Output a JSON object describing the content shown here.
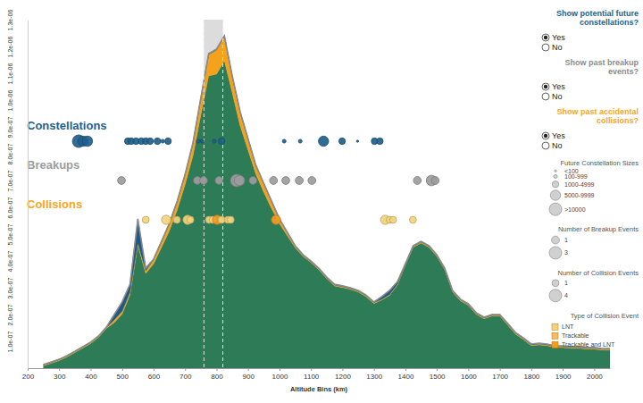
{
  "chart_data": {
    "type": "area",
    "stacked": true,
    "x_label": "Altitude Bins (km)",
    "x": [
      250,
      275,
      300,
      325,
      350,
      375,
      400,
      425,
      450,
      475,
      500,
      525,
      550,
      575,
      600,
      625,
      650,
      675,
      700,
      725,
      750,
      775,
      800,
      825,
      850,
      875,
      900,
      925,
      950,
      975,
      1000,
      1025,
      1050,
      1075,
      1100,
      1125,
      1150,
      1175,
      1200,
      1225,
      1250,
      1275,
      1300,
      1325,
      1350,
      1375,
      1400,
      1425,
      1450,
      1475,
      1500,
      1525,
      1550,
      1575,
      1600,
      1625,
      1650,
      1675,
      1700,
      1725,
      1750,
      1775,
      1800,
      1825,
      1850,
      1875,
      1900,
      1925,
      1950,
      1975,
      2000,
      2025,
      2050
    ],
    "xlim": [
      200,
      2050
    ],
    "xticks": [
      200,
      300,
      400,
      500,
      600,
      700,
      800,
      900,
      1000,
      1100,
      1200,
      1300,
      1400,
      1500,
      1600,
      1700,
      1800,
      1900,
      2000
    ],
    "ylim": [
      0,
      1.3e-06
    ],
    "yticks": [
      {
        "value": 1e-07,
        "label": "1.0e-07"
      },
      {
        "value": 2e-07,
        "label": "2.0e-07"
      },
      {
        "value": 3e-07,
        "label": "3.0e-07"
      },
      {
        "value": 4e-07,
        "label": "4.0e-07"
      },
      {
        "value": 5e-07,
        "label": "5.0e-07"
      },
      {
        "value": 6e-07,
        "label": "6.0e-07"
      },
      {
        "value": 7e-07,
        "label": "7.0e-07"
      },
      {
        "value": 8e-07,
        "label": "8.0e-07"
      },
      {
        "value": 9e-07,
        "label": "9.0e-07"
      },
      {
        "value": 1e-06,
        "label": "1.0e-06"
      },
      {
        "value": 1.1e-06,
        "label": "1.1e-06"
      },
      {
        "value": 1.2e-06,
        "label": "1.2e-06"
      },
      {
        "value": 1.3e-06,
        "label": "1.3e-06"
      }
    ],
    "series": [
      {
        "color": "#2e7b57",
        "values": [
          8e-09,
          1.8e-08,
          2.8e-08,
          4.2e-08,
          5.8e-08,
          7.5e-08,
          9.2e-08,
          1.15e-07,
          1.48e-07,
          1.7e-07,
          2.02e-07,
          2.73e-07,
          4.57e-07,
          3.53e-07,
          3.89e-07,
          4.5e-07,
          5.12e-07,
          5.9e-07,
          6.85e-07,
          7.92e-07,
          9.44e-07,
          1.09e-06,
          1.097e-06,
          1.147e-06,
          1.027e-06,
          9.04e-07,
          8.14e-07,
          7.24e-07,
          6.57e-07,
          5.95e-07,
          5.39e-07,
          4.94e-07,
          4.49e-07,
          4.17e-07,
          3.94e-07,
          3.67e-07,
          3.34e-07,
          3.07e-07,
          3.01e-07,
          2.94e-07,
          2.84e-07,
          2.67e-07,
          2.41e-07,
          2.54e-07,
          2.72e-07,
          3.1e-07,
          3.84e-07,
          4.51e-07,
          4.67e-07,
          4.51e-07,
          4.17e-07,
          3.67e-07,
          2.84e-07,
          2.51e-07,
          2.34e-07,
          2.01e-07,
          1.84e-07,
          1.94e-07,
          1.94e-07,
          1.61e-07,
          1.27e-07,
          1.07e-07,
          8.4e-08,
          8.7e-08,
          8.4e-08,
          7.7e-08,
          7.7e-08,
          7.4e-08,
          7.4e-08,
          7.1e-08,
          7.1e-08,
          6.7e-08,
          6.7e-08
        ]
      },
      {
        "color": "#f5a11c",
        "values": [
          3e-09,
          3e-09,
          3e-09,
          3e-09,
          3e-09,
          3e-09,
          3e-09,
          3e-09,
          3e-09,
          1e-08,
          1e-08,
          1e-08,
          1e-08,
          1e-08,
          1.5e-08,
          2e-08,
          2.5e-08,
          3e-08,
          3.5e-08,
          4.5e-08,
          6e-08,
          8e-08,
          9e-08,
          9e-08,
          6e-08,
          5e-08,
          4e-08,
          3e-08,
          3e-08,
          2.5e-08,
          1.5e-08,
          1e-08,
          5e-09,
          3e-09,
          3e-09,
          3e-09,
          3e-09,
          3e-09,
          3e-09,
          3e-09,
          3e-09,
          3e-09,
          3e-09,
          3e-09,
          3e-09,
          3e-09,
          3e-09,
          3e-09,
          3e-09,
          3e-09,
          3e-09,
          3e-09,
          3e-09,
          3e-09,
          3e-09,
          3e-09,
          3e-09,
          3e-09,
          3e-09,
          3e-09,
          3e-09,
          3e-09,
          3e-09,
          3e-09,
          3e-09,
          3e-09,
          3e-09,
          3e-09,
          3e-09,
          3e-09,
          3e-09,
          3e-09,
          3e-09
        ]
      },
      {
        "color": "#1f5a87",
        "values": [
          2e-09,
          2e-09,
          2e-09,
          2e-09,
          2e-09,
          2e-09,
          2e-09,
          2e-09,
          2e-09,
          2e-08,
          3.5e-08,
          3e-08,
          9e-08,
          1e-08,
          3e-09,
          3e-09,
          3e-09,
          3e-09,
          3e-09,
          3e-09,
          3e-09,
          3e-09,
          3e-09,
          3e-09,
          3e-09,
          3e-09,
          3e-09,
          3e-09,
          3e-09,
          3e-09,
          3e-09,
          3e-09,
          3e-09,
          3e-09,
          3e-09,
          3e-09,
          3e-09,
          3e-09,
          3e-09,
          3e-09,
          3e-09,
          3e-09,
          3e-09,
          1e-08,
          1.5e-08,
          1e-08,
          3e-09,
          3e-09,
          3e-09,
          3e-09,
          3e-09,
          3e-09,
          3e-09,
          3e-09,
          3e-09,
          3e-09,
          3e-09,
          3e-09,
          3e-09,
          3e-09,
          3e-09,
          3e-09,
          3e-09,
          3e-09,
          3e-09,
          3e-09,
          3e-09,
          3e-09,
          3e-09,
          3e-09,
          3e-09,
          3e-09,
          3e-09
        ]
      }
    ],
    "reference_range": [
      760,
      820
    ],
    "bubble_rows": [
      {
        "name": "Constellations",
        "color": "#1f5f8b",
        "x": [
          362,
          376,
          390,
          518,
          529,
          544,
          561,
          575,
          589,
          612,
          629,
          646,
          742,
          754,
          793,
          816,
          1015,
          1066,
          1140,
          1199,
          1248,
          1302,
          1319
        ],
        "sizes": [
          12000,
          7500,
          7500,
          2500,
          2500,
          2500,
          2500,
          2500,
          2500,
          2500,
          500,
          2500,
          500,
          500,
          500,
          2500,
          500,
          500,
          7500,
          2500,
          50,
          2500,
          2500
        ]
      },
      {
        "name": "Breakups",
        "color": "#9c9c9c",
        "x": [
          498,
          739,
          759,
          808,
          864,
          873,
          916,
          981,
          1020,
          1063,
          1103,
          1438,
          1483,
          1495
        ],
        "sizes": [
          1,
          1,
          1,
          1,
          3,
          2,
          1,
          1,
          1,
          1,
          1,
          1,
          2,
          1
        ]
      },
      {
        "name": "Collisions",
        "color": "#f5a623",
        "x": [
          575,
          640,
          674,
          708,
          717,
          776,
          788,
          802,
          816,
          836,
          845,
          989,
          1336,
          1350,
          1361,
          1424
        ],
        "sizes": [
          1,
          2,
          1,
          2,
          1,
          1,
          1,
          2,
          1,
          1,
          1,
          2,
          2,
          1,
          1,
          1
        ],
        "colors": [
          "#f3d47c",
          "#f3d47c",
          "#f3d47c",
          "#f3d47c",
          "#f3d47c",
          "#f3d47c",
          "#f3d47c",
          "#f39c21",
          "#f3d47c",
          "#f3d47c",
          "#f3d47c",
          "#f39c21",
          "#f3d47c",
          "#f3d47c",
          "#f3d47c",
          "#f3d47c"
        ]
      }
    ],
    "controls": [
      {
        "label": [
          "Show potential future",
          "constellations?"
        ],
        "color": "#1f5f8b",
        "options": [
          "Yes",
          "No"
        ],
        "selected": "Yes"
      },
      {
        "label": [
          "Show past breakup",
          "events?"
        ],
        "color": "#8c8c8c",
        "options": [
          "Yes",
          "No"
        ],
        "selected": "Yes"
      },
      {
        "label": [
          "Show past accidental",
          "collisions?"
        ],
        "color": "#f5a623",
        "options": [
          "Yes",
          "No"
        ],
        "selected": "Yes"
      }
    ],
    "size_legends": [
      {
        "title": "Future Constellation Sizes",
        "labels": [
          "<100",
          "100-999",
          "1000-4999",
          "5000-9999",
          ">10000"
        ],
        "values": [
          50,
          500,
          2500,
          7500,
          12000
        ]
      },
      {
        "title": "Number of Breakup Events",
        "values": [
          1,
          3
        ]
      },
      {
        "title": "Number of Collision Events",
        "values": [
          1,
          4
        ]
      }
    ],
    "type_legend": {
      "title": "Type of Collision Event",
      "labels": [
        "LNT",
        "Trackable",
        "Trackable and LNT"
      ],
      "colors": [
        "#f3d47c",
        "#f5b968",
        "#f39c21"
      ]
    }
  }
}
